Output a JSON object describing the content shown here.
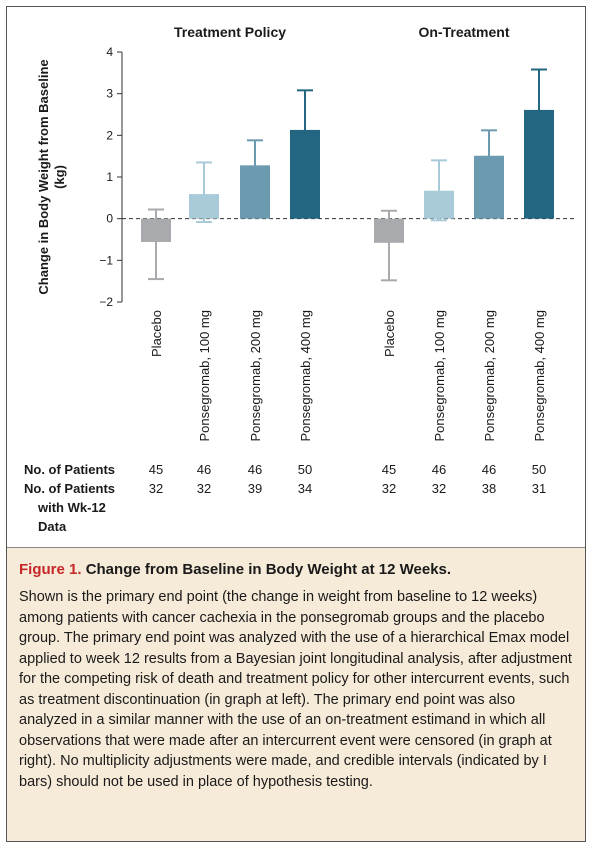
{
  "chart_data": {
    "type": "bar",
    "ylabel": "Change in Body Weight from Baseline (kg)",
    "ylabel_lines": [
      "Change in Body Weight from Baseline",
      "(kg)"
    ],
    "ylim": [
      -2,
      4
    ],
    "yticks": [
      "−2",
      "−1",
      "0",
      "1",
      "2",
      "3",
      "4"
    ],
    "ytick_values": [
      -2,
      -1,
      0,
      1,
      2,
      3,
      4
    ],
    "categories": [
      "Placebo",
      "Ponsegromab, 100 mg",
      "Ponsegromab, 200 mg",
      "Ponsegromab, 400 mg"
    ],
    "colors": [
      "#a9aaad",
      "#a9cad8",
      "#6c9ab0",
      "#236682"
    ],
    "panels": [
      {
        "title": "Treatment Policy",
        "values": [
          -0.56,
          0.59,
          1.28,
          2.13
        ],
        "ci_low": [
          -1.45,
          -0.08,
          0.42,
          1.28
        ],
        "ci_high": [
          0.22,
          1.35,
          1.88,
          3.08
        ],
        "patients": [
          "45",
          "46",
          "46",
          "50"
        ],
        "patients_wk12": [
          "32",
          "32",
          "39",
          "34"
        ]
      },
      {
        "title": "On-Treatment",
        "values": [
          -0.58,
          0.67,
          1.51,
          2.61
        ],
        "ci_low": [
          -1.48,
          -0.04,
          0.75,
          1.58
        ],
        "ci_high": [
          0.19,
          1.4,
          2.12,
          3.58
        ],
        "patients": [
          "45",
          "46",
          "46",
          "50"
        ],
        "patients_wk12": [
          "32",
          "32",
          "38",
          "31"
        ]
      }
    ],
    "row_labels": {
      "patients": "No. of Patients",
      "wk12_lines": [
        "No. of Patients",
        "with Wk-12",
        "Data"
      ]
    },
    "reference_line": "dashed at 0"
  },
  "caption": {
    "label": "Figure 1.",
    "title": "Change from Baseline in Body Weight at 12 Weeks.",
    "body": "Shown is the primary end point (the change in weight from baseline to 12 weeks) among patients with cancer cachexia in the ponsegromab groups and the placebo group. The primary end point was analyzed with the use of a hierarchical Emax model applied to week 12 results from a Bayesian joint longitudinal analysis, after adjustment for the competing risk of death and treatment policy for other intercurrent events, such as treatment discontinuation (in graph at left). The primary end point was also analyzed in a similar manner with the use of an on-treatment estimand in which all observations that were made after an intercurrent event were censored (in graph at right). No multiplicity adjustments were made, and credible intervals (indicated by I bars) should not be used in place of hypothesis testing."
  }
}
